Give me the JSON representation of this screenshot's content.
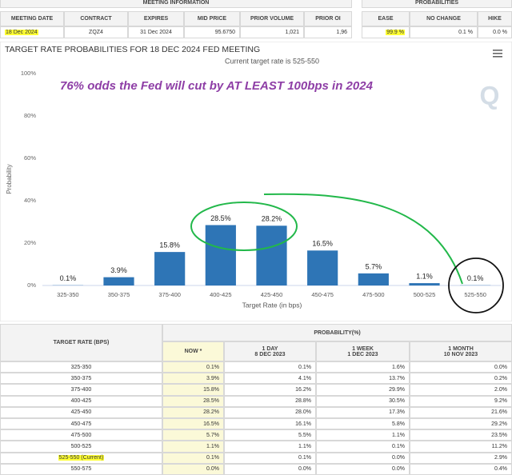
{
  "meeting_info": {
    "title": "MEETING INFORMATION",
    "columns": [
      "MEETING DATE",
      "CONTRACT",
      "EXPIRES",
      "MID PRICE",
      "PRIOR VOLUME",
      "PRIOR OI"
    ],
    "row": [
      "18 Dec 2024",
      "ZQZ4",
      "31 Dec 2024",
      "95.6750",
      "1,021",
      "1,96"
    ]
  },
  "probabilities": {
    "title": "PROBABILITIES",
    "columns": [
      "EASE",
      "NO CHANGE",
      "HIKE"
    ],
    "row": [
      "99.9 %",
      "0.1 %",
      "0.0 %"
    ]
  },
  "chart_data": {
    "type": "bar",
    "title": "TARGET RATE PROBABILITIES FOR 18 DEC 2024 FED MEETING",
    "subtitle": "Current target rate is 525-550",
    "annotation": "76% odds the Fed will cut by AT LEAST 100bps in 2024",
    "x_label": "Target Rate (in bps)",
    "y_label": "Probability",
    "categories": [
      "325-350",
      "350-375",
      "375-400",
      "400-425",
      "425-450",
      "450-475",
      "475-500",
      "500-525",
      "525-550"
    ],
    "values": [
      0.1,
      3.9,
      15.8,
      28.5,
      28.2,
      16.5,
      5.7,
      1.1,
      0.1
    ],
    "value_labels": [
      "0.1%",
      "3.9%",
      "15.8%",
      "28.5%",
      "28.2%",
      "16.5%",
      "5.7%",
      "1.1%",
      "0.1%"
    ],
    "color": "#2e75b6",
    "ylim": [
      0,
      100
    ],
    "yticks": [
      {
        "value": 0,
        "label": "0%"
      },
      {
        "value": 20,
        "label": "20%"
      },
      {
        "value": 40,
        "label": "40%"
      },
      {
        "value": 60,
        "label": "60%"
      },
      {
        "value": 80,
        "label": "80%"
      },
      {
        "value": 100,
        "label": "100%"
      }
    ],
    "grid": false
  },
  "rate_table": {
    "header": "TARGET RATE (BPS)",
    "group": "PROBABILITY(%)",
    "columns": [
      {
        "title": "NOW *"
      },
      {
        "title": "1 DAY",
        "date": "8 DEC 2023"
      },
      {
        "title": "1 WEEK",
        "date": "1 DEC 2023"
      },
      {
        "title": "1 MONTH",
        "date": "10 NOV 2023"
      }
    ],
    "rows": [
      [
        "325-350",
        "0.1%",
        "0.1%",
        "1.6%",
        "0.0%"
      ],
      [
        "350-375",
        "3.9%",
        "4.1%",
        "13.7%",
        "0.2%"
      ],
      [
        "375-400",
        "15.8%",
        "16.2%",
        "29.9%",
        "2.0%"
      ],
      [
        "400-425",
        "28.5%",
        "28.8%",
        "30.5%",
        "9.2%"
      ],
      [
        "425-450",
        "28.2%",
        "28.0%",
        "17.3%",
        "21.6%"
      ],
      [
        "450-475",
        "16.5%",
        "16.1%",
        "5.8%",
        "29.2%"
      ],
      [
        "475-500",
        "5.7%",
        "5.5%",
        "1.1%",
        "23.5%"
      ],
      [
        "500-525",
        "1.1%",
        "1.1%",
        "0.1%",
        "11.2%"
      ],
      [
        "525-550 (Current)",
        "0.1%",
        "0.1%",
        "0.0%",
        "2.9%"
      ],
      [
        "550-575",
        "0.0%",
        "0.0%",
        "0.0%",
        "0.4%"
      ]
    ]
  }
}
